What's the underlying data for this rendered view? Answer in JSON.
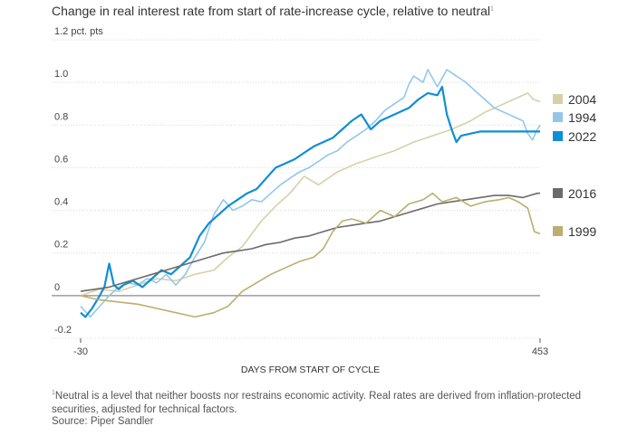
{
  "title": "Change in real interest rate from start of rate-increase cycle, relative to neutral",
  "title_marker": "1",
  "footnote_marker": "1",
  "footnote": "Neutral is a level that neither boosts nor restrains economic activity. Real rates are derived from inflation-protected securities, adjusted for technical factors.",
  "source": "Source: Piper Sandler",
  "chart_data": {
    "type": "line",
    "xlabel": "DAYS FROM START OF CYCLE",
    "xlim": [
      -30,
      453
    ],
    "x_ticks": [
      "-30",
      "453"
    ],
    "ylim": [
      -0.2,
      1.2
    ],
    "y_ticks": [
      {
        "value": 1.2,
        "label": "1.2 pct. pts"
      },
      {
        "value": 1.0,
        "label": "1.0"
      },
      {
        "value": 0.8,
        "label": "0.8"
      },
      {
        "value": 0.6,
        "label": "0.6"
      },
      {
        "value": 0.4,
        "label": "0.4"
      },
      {
        "value": 0.2,
        "label": "0.2"
      },
      {
        "value": 0,
        "label": "0"
      },
      {
        "value": -0.2,
        "label": "-0.2"
      }
    ],
    "grid": true,
    "legend": "right",
    "series": [
      {
        "name": "2004",
        "color": "#d9cfa8",
        "width": 1.6,
        "points": [
          [
            -30,
            0.0
          ],
          [
            -10,
            0.03
          ],
          [
            10,
            0.02
          ],
          [
            30,
            0.05
          ],
          [
            50,
            0.08
          ],
          [
            70,
            0.07
          ],
          [
            90,
            0.1
          ],
          [
            110,
            0.12
          ],
          [
            125,
            0.18
          ],
          [
            140,
            0.23
          ],
          [
            150,
            0.29
          ],
          [
            160,
            0.35
          ],
          [
            175,
            0.42
          ],
          [
            190,
            0.48
          ],
          [
            205,
            0.56
          ],
          [
            220,
            0.52
          ],
          [
            240,
            0.58
          ],
          [
            260,
            0.62
          ],
          [
            280,
            0.65
          ],
          [
            300,
            0.68
          ],
          [
            320,
            0.72
          ],
          [
            340,
            0.75
          ],
          [
            360,
            0.78
          ],
          [
            380,
            0.82
          ],
          [
            395,
            0.86
          ],
          [
            410,
            0.89
          ],
          [
            425,
            0.92
          ],
          [
            440,
            0.95
          ],
          [
            446,
            0.92
          ],
          [
            453,
            0.91
          ]
        ]
      },
      {
        "name": "1994",
        "color": "#93c7ea",
        "width": 1.6,
        "points": [
          [
            -30,
            -0.05
          ],
          [
            -20,
            -0.1
          ],
          [
            -10,
            -0.05
          ],
          [
            0,
            0.0
          ],
          [
            10,
            0.04
          ],
          [
            20,
            0.06
          ],
          [
            30,
            0.05
          ],
          [
            40,
            0.08
          ],
          [
            50,
            0.06
          ],
          [
            60,
            0.1
          ],
          [
            70,
            0.05
          ],
          [
            80,
            0.1
          ],
          [
            90,
            0.18
          ],
          [
            100,
            0.25
          ],
          [
            110,
            0.38
          ],
          [
            120,
            0.45
          ],
          [
            130,
            0.4
          ],
          [
            140,
            0.42
          ],
          [
            150,
            0.45
          ],
          [
            160,
            0.44
          ],
          [
            170,
            0.48
          ],
          [
            180,
            0.52
          ],
          [
            190,
            0.55
          ],
          [
            200,
            0.58
          ],
          [
            210,
            0.6
          ],
          [
            220,
            0.63
          ],
          [
            230,
            0.66
          ],
          [
            240,
            0.68
          ],
          [
            250,
            0.72
          ],
          [
            260,
            0.75
          ],
          [
            270,
            0.78
          ],
          [
            280,
            0.82
          ],
          [
            290,
            0.87
          ],
          [
            300,
            0.9
          ],
          [
            310,
            0.93
          ],
          [
            315,
            0.99
          ],
          [
            320,
            1.03
          ],
          [
            330,
            1.0
          ],
          [
            335,
            1.06
          ],
          [
            345,
            0.98
          ],
          [
            355,
            1.06
          ],
          [
            365,
            1.03
          ],
          [
            375,
            1.0
          ],
          [
            385,
            0.96
          ],
          [
            395,
            0.92
          ],
          [
            405,
            0.88
          ],
          [
            415,
            0.86
          ],
          [
            425,
            0.84
          ],
          [
            435,
            0.82
          ],
          [
            440,
            0.76
          ],
          [
            445,
            0.73
          ],
          [
            450,
            0.78
          ],
          [
            453,
            0.8
          ]
        ]
      },
      {
        "name": "2022",
        "color": "#0f8ed5",
        "width": 2.2,
        "points": [
          [
            -30,
            -0.08
          ],
          [
            -25,
            -0.1
          ],
          [
            -18,
            -0.06
          ],
          [
            -10,
            0.0
          ],
          [
            -5,
            0.04
          ],
          [
            0,
            0.15
          ],
          [
            5,
            0.05
          ],
          [
            10,
            0.03
          ],
          [
            15,
            0.05
          ],
          [
            25,
            0.07
          ],
          [
            35,
            0.04
          ],
          [
            45,
            0.08
          ],
          [
            55,
            0.12
          ],
          [
            65,
            0.1
          ],
          [
            75,
            0.14
          ],
          [
            85,
            0.18
          ],
          [
            95,
            0.28
          ],
          [
            105,
            0.34
          ],
          [
            115,
            0.38
          ],
          [
            125,
            0.42
          ],
          [
            135,
            0.45
          ],
          [
            145,
            0.48
          ],
          [
            155,
            0.5
          ],
          [
            165,
            0.55
          ],
          [
            175,
            0.6
          ],
          [
            185,
            0.62
          ],
          [
            195,
            0.64
          ],
          [
            205,
            0.67
          ],
          [
            215,
            0.7
          ],
          [
            225,
            0.72
          ],
          [
            235,
            0.74
          ],
          [
            245,
            0.78
          ],
          [
            255,
            0.82
          ],
          [
            265,
            0.85
          ],
          [
            275,
            0.78
          ],
          [
            285,
            0.82
          ],
          [
            295,
            0.84
          ],
          [
            305,
            0.86
          ],
          [
            315,
            0.88
          ],
          [
            325,
            0.92
          ],
          [
            335,
            0.95
          ],
          [
            345,
            0.94
          ],
          [
            350,
            0.98
          ],
          [
            355,
            0.85
          ],
          [
            360,
            0.78
          ],
          [
            365,
            0.72
          ],
          [
            370,
            0.75
          ],
          [
            380,
            0.76
          ],
          [
            390,
            0.77
          ],
          [
            400,
            0.77
          ],
          [
            453,
            0.77
          ]
        ]
      },
      {
        "name": "2016",
        "color": "#6b6b6b",
        "width": 1.6,
        "points": [
          [
            -30,
            0.02
          ],
          [
            -15,
            0.03
          ],
          [
            0,
            0.04
          ],
          [
            15,
            0.06
          ],
          [
            30,
            0.08
          ],
          [
            45,
            0.1
          ],
          [
            60,
            0.12
          ],
          [
            75,
            0.14
          ],
          [
            90,
            0.16
          ],
          [
            105,
            0.18
          ],
          [
            120,
            0.2
          ],
          [
            135,
            0.21
          ],
          [
            150,
            0.22
          ],
          [
            165,
            0.24
          ],
          [
            180,
            0.25
          ],
          [
            195,
            0.27
          ],
          [
            210,
            0.28
          ],
          [
            225,
            0.3
          ],
          [
            240,
            0.32
          ],
          [
            255,
            0.33
          ],
          [
            270,
            0.34
          ],
          [
            285,
            0.35
          ],
          [
            300,
            0.37
          ],
          [
            315,
            0.39
          ],
          [
            330,
            0.41
          ],
          [
            345,
            0.43
          ],
          [
            360,
            0.44
          ],
          [
            375,
            0.45
          ],
          [
            390,
            0.46
          ],
          [
            405,
            0.47
          ],
          [
            420,
            0.47
          ],
          [
            435,
            0.46
          ],
          [
            450,
            0.48
          ],
          [
            453,
            0.48
          ]
        ]
      },
      {
        "name": "1999",
        "color": "#bcae6e",
        "width": 1.6,
        "points": [
          [
            -30,
            0.0
          ],
          [
            -10,
            -0.02
          ],
          [
            10,
            -0.03
          ],
          [
            30,
            -0.04
          ],
          [
            50,
            -0.06
          ],
          [
            70,
            -0.08
          ],
          [
            90,
            -0.1
          ],
          [
            110,
            -0.08
          ],
          [
            125,
            -0.05
          ],
          [
            140,
            0.02
          ],
          [
            155,
            0.06
          ],
          [
            170,
            0.1
          ],
          [
            185,
            0.13
          ],
          [
            200,
            0.16
          ],
          [
            215,
            0.18
          ],
          [
            225,
            0.22
          ],
          [
            235,
            0.3
          ],
          [
            245,
            0.35
          ],
          [
            255,
            0.36
          ],
          [
            270,
            0.34
          ],
          [
            285,
            0.4
          ],
          [
            300,
            0.37
          ],
          [
            315,
            0.43
          ],
          [
            330,
            0.45
          ],
          [
            340,
            0.48
          ],
          [
            350,
            0.44
          ],
          [
            365,
            0.46
          ],
          [
            380,
            0.42
          ],
          [
            395,
            0.44
          ],
          [
            410,
            0.45
          ],
          [
            420,
            0.46
          ],
          [
            430,
            0.44
          ],
          [
            440,
            0.41
          ],
          [
            447,
            0.3
          ],
          [
            453,
            0.29
          ]
        ]
      }
    ]
  }
}
